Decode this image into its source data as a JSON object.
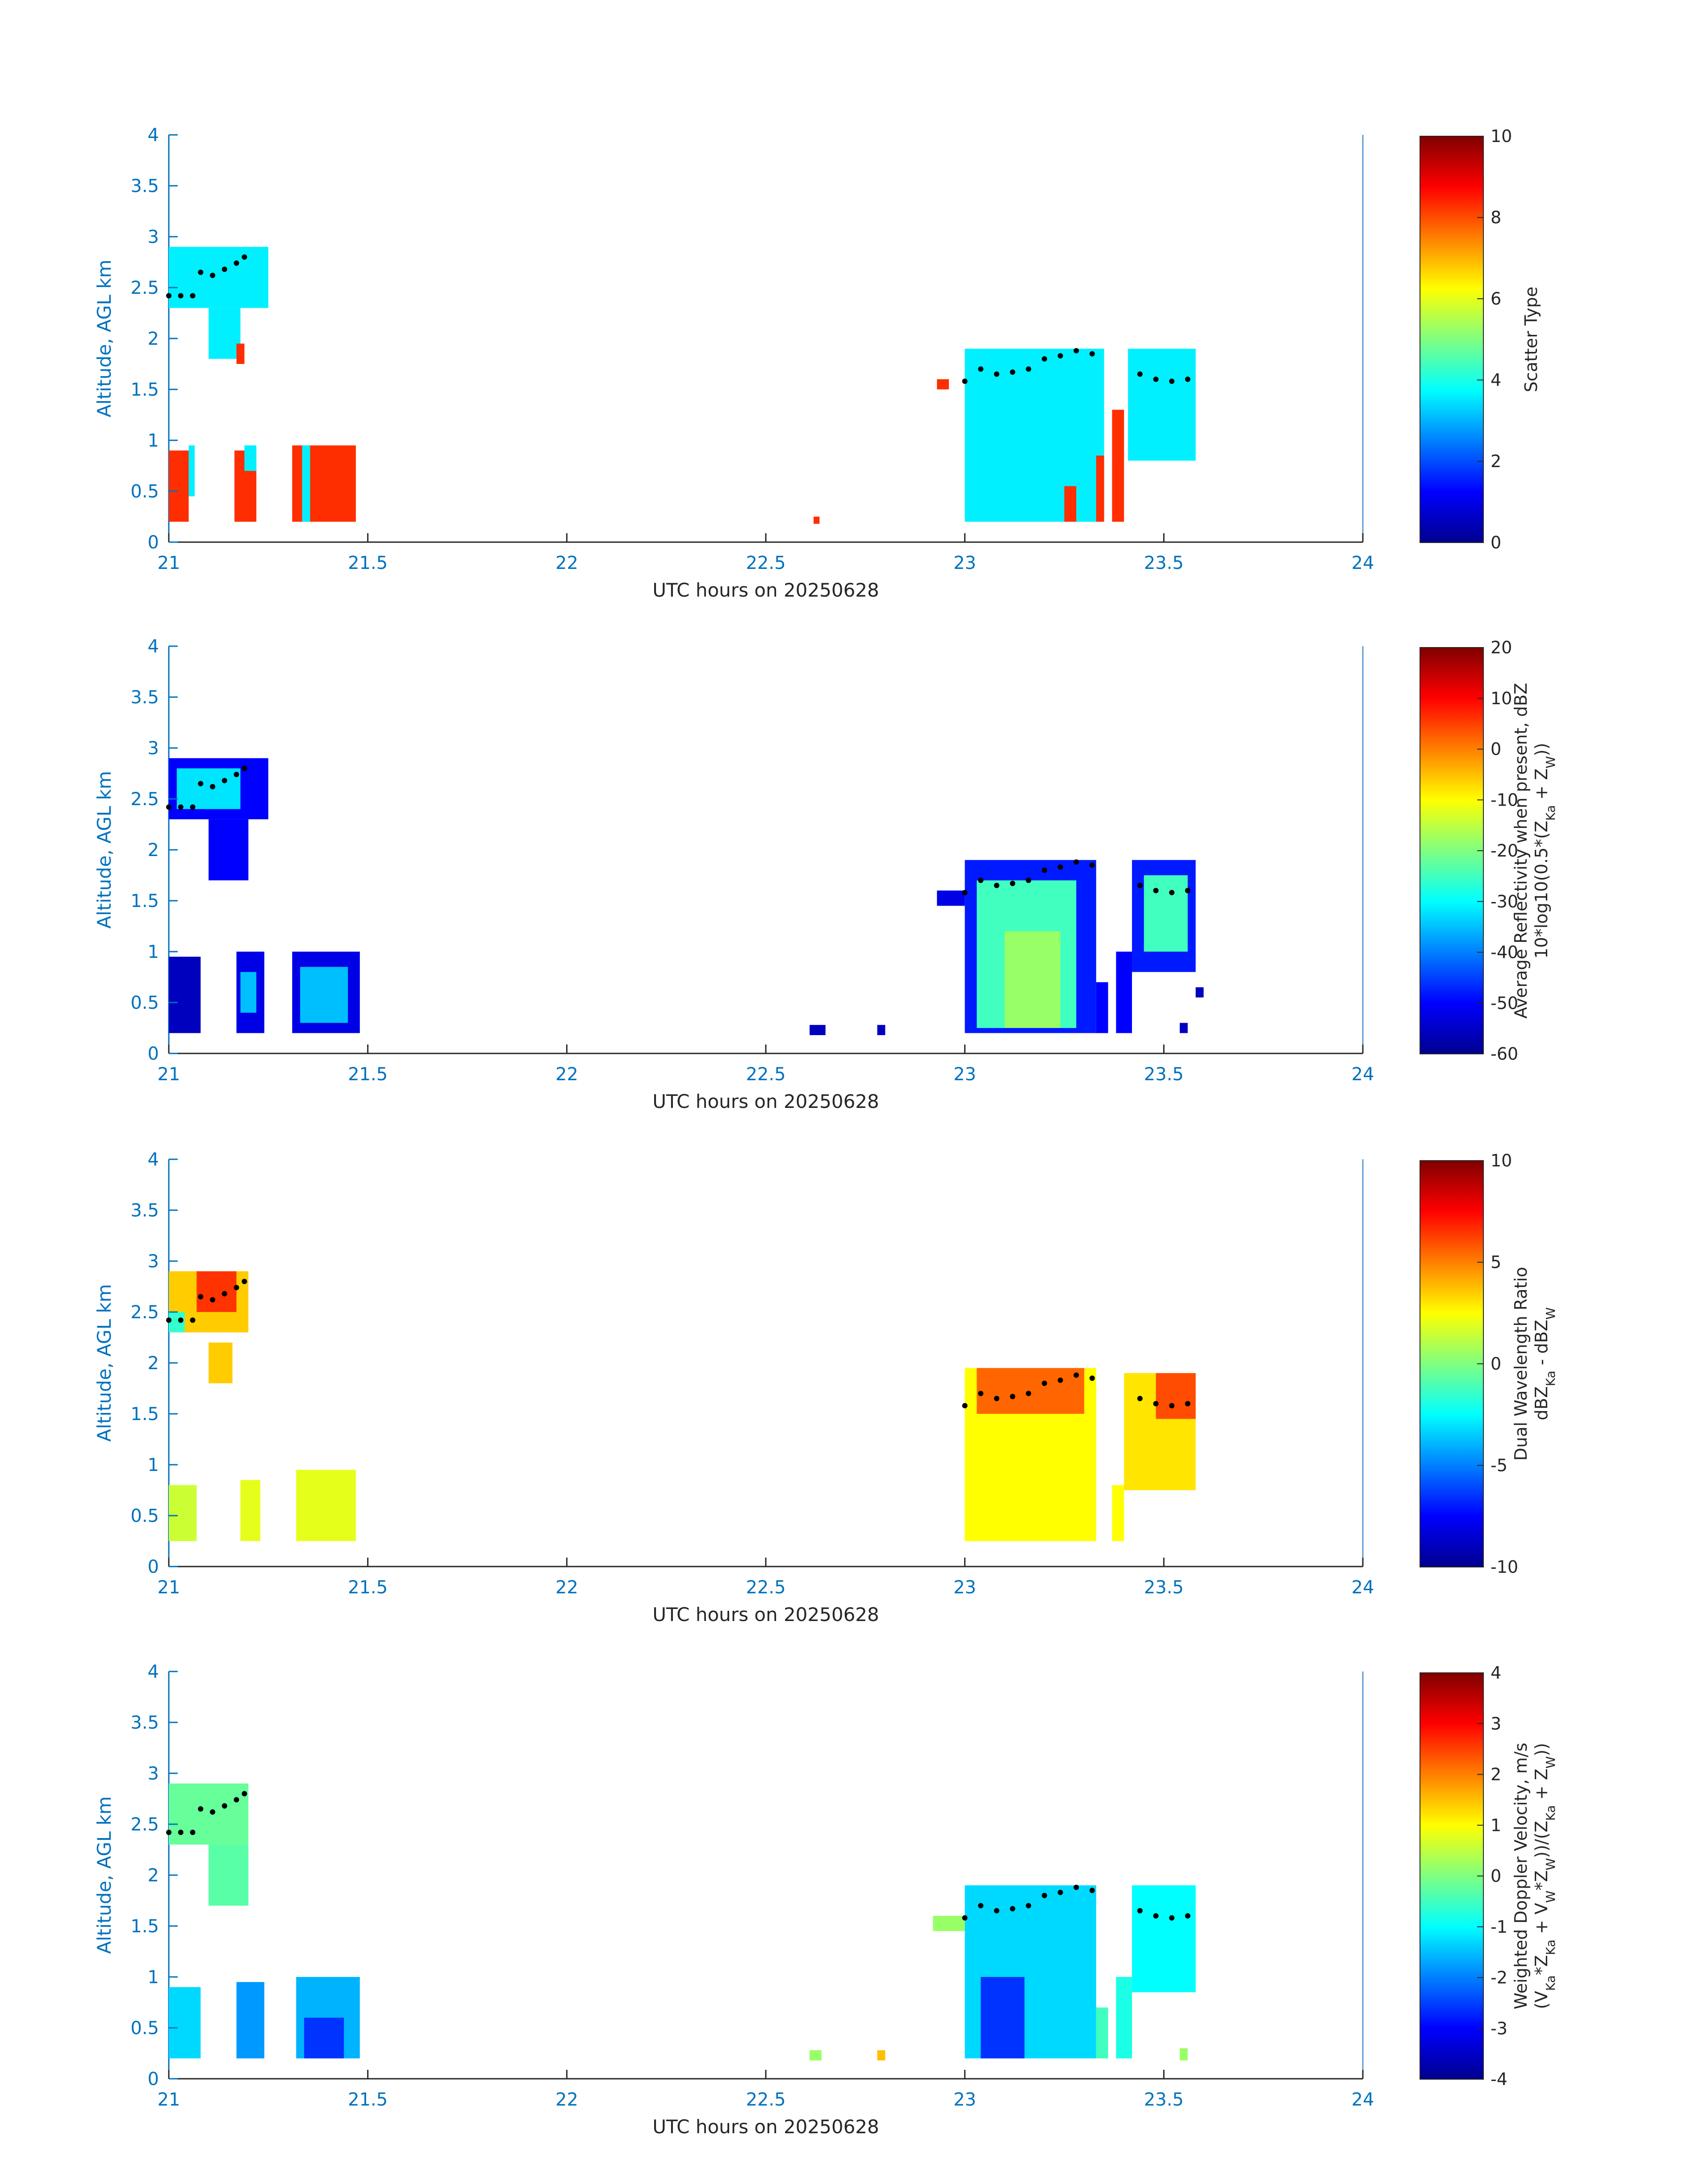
{
  "chart_data": [
    {
      "type": "heatmap",
      "xlabel": "UTC hours on 20250628",
      "ylabel": "Altitude, AGL km",
      "xlim": [
        21,
        24
      ],
      "ylim": [
        0,
        4
      ],
      "x_ticks": [
        "21",
        "21.5",
        "22",
        "22.5",
        "23",
        "23.5",
        "24"
      ],
      "y_ticks": [
        "0",
        "0.5",
        "1",
        "1.5",
        "2",
        "2.5",
        "3",
        "3.5",
        "4"
      ],
      "colorbar": {
        "label_lines": [
          "Scatter Type"
        ],
        "clim": [
          0,
          10
        ],
        "ticks": [
          "0",
          "2",
          "4",
          "6",
          "8",
          "10"
        ]
      },
      "regions": [
        {
          "x": [
            21.0,
            21.25
          ],
          "y": [
            2.3,
            2.9
          ],
          "value": 3.6
        },
        {
          "x": [
            21.1,
            21.18
          ],
          "y": [
            1.8,
            2.3
          ],
          "value": 3.6
        },
        {
          "x": [
            21.17,
            21.19
          ],
          "y": [
            1.75,
            1.95
          ],
          "value": 8.3
        },
        {
          "x": [
            21.0,
            21.05
          ],
          "y": [
            0.2,
            0.9
          ],
          "value": 8.3
        },
        {
          "x": [
            21.05,
            21.065
          ],
          "y": [
            0.45,
            0.95
          ],
          "value": 3.6
        },
        {
          "x": [
            21.165,
            21.22
          ],
          "y": [
            0.2,
            0.9
          ],
          "value": 8.3
        },
        {
          "x": [
            21.19,
            21.22
          ],
          "y": [
            0.7,
            0.95
          ],
          "value": 3.6
        },
        {
          "x": [
            21.31,
            21.47
          ],
          "y": [
            0.2,
            0.95
          ],
          "value": 8.3
        },
        {
          "x": [
            21.335,
            21.355
          ],
          "y": [
            0.2,
            0.95
          ],
          "value": 3.6
        },
        {
          "x": [
            22.62,
            22.635
          ],
          "y": [
            0.18,
            0.25
          ],
          "value": 8.3
        },
        {
          "x": [
            22.93,
            22.96
          ],
          "y": [
            1.5,
            1.6
          ],
          "value": 8.3
        },
        {
          "x": [
            23.0,
            23.35
          ],
          "y": [
            0.2,
            1.9
          ],
          "value": 3.6
        },
        {
          "x": [
            23.25,
            23.28
          ],
          "y": [
            0.2,
            0.55
          ],
          "value": 8.3
        },
        {
          "x": [
            23.33,
            23.35
          ],
          "y": [
            0.2,
            0.85
          ],
          "value": 8.3
        },
        {
          "x": [
            23.37,
            23.4
          ],
          "y": [
            0.2,
            1.3
          ],
          "value": 8.3
        },
        {
          "x": [
            23.41,
            23.58
          ],
          "y": [
            0.8,
            1.9
          ],
          "value": 3.6
        }
      ],
      "melting_layer": [
        {
          "x": 21.0,
          "y": 2.42
        },
        {
          "x": 21.03,
          "y": 2.42
        },
        {
          "x": 21.06,
          "y": 2.42
        },
        {
          "x": 21.08,
          "y": 2.65
        },
        {
          "x": 21.11,
          "y": 2.62
        },
        {
          "x": 21.14,
          "y": 2.68
        },
        {
          "x": 21.17,
          "y": 2.74
        },
        {
          "x": 21.19,
          "y": 2.8
        },
        {
          "x": 23.0,
          "y": 1.58
        },
        {
          "x": 23.04,
          "y": 1.7
        },
        {
          "x": 23.08,
          "y": 1.65
        },
        {
          "x": 23.12,
          "y": 1.67
        },
        {
          "x": 23.16,
          "y": 1.7
        },
        {
          "x": 23.2,
          "y": 1.8
        },
        {
          "x": 23.24,
          "y": 1.83
        },
        {
          "x": 23.28,
          "y": 1.88
        },
        {
          "x": 23.32,
          "y": 1.85
        },
        {
          "x": 23.44,
          "y": 1.65
        },
        {
          "x": 23.48,
          "y": 1.6
        },
        {
          "x": 23.52,
          "y": 1.58
        },
        {
          "x": 23.56,
          "y": 1.6
        }
      ]
    },
    {
      "type": "heatmap",
      "xlabel": "UTC hours on 20250628",
      "ylabel": "Altitude, AGL km",
      "xlim": [
        21,
        24
      ],
      "ylim": [
        0,
        4
      ],
      "x_ticks": [
        "21",
        "21.5",
        "22",
        "22.5",
        "23",
        "23.5",
        "24"
      ],
      "y_ticks": [
        "0",
        "0.5",
        "1",
        "1.5",
        "2",
        "2.5",
        "3",
        "3.5",
        "4"
      ],
      "colorbar": {
        "label_lines": [
          "Average Reflectivity when present, dBZ",
          "10*log10(0.5*(Z_Ka + Z_W))"
        ],
        "clim": [
          -60,
          20
        ],
        "ticks": [
          "-60",
          "-50",
          "-40",
          "-30",
          "-20",
          "-10",
          "0",
          "10",
          "20"
        ]
      },
      "regions": [
        {
          "x": [
            21.0,
            21.25
          ],
          "y": [
            2.3,
            2.9
          ],
          "value": -50
        },
        {
          "x": [
            21.02,
            21.18
          ],
          "y": [
            2.4,
            2.8
          ],
          "value": -32
        },
        {
          "x": [
            21.1,
            21.2
          ],
          "y": [
            1.7,
            2.3
          ],
          "value": -50
        },
        {
          "x": [
            21.0,
            21.08
          ],
          "y": [
            0.2,
            0.95
          ],
          "value": -55
        },
        {
          "x": [
            21.17,
            21.24
          ],
          "y": [
            0.2,
            1.0
          ],
          "value": -52
        },
        {
          "x": [
            21.18,
            21.22
          ],
          "y": [
            0.4,
            0.8
          ],
          "value": -35
        },
        {
          "x": [
            21.31,
            21.48
          ],
          "y": [
            0.2,
            1.0
          ],
          "value": -52
        },
        {
          "x": [
            21.33,
            21.45
          ],
          "y": [
            0.3,
            0.85
          ],
          "value": -35
        },
        {
          "x": [
            22.61,
            22.65
          ],
          "y": [
            0.18,
            0.28
          ],
          "value": -55
        },
        {
          "x": [
            22.78,
            22.8
          ],
          "y": [
            0.18,
            0.28
          ],
          "value": -55
        },
        {
          "x": [
            22.93,
            23.0
          ],
          "y": [
            1.45,
            1.6
          ],
          "value": -52
        },
        {
          "x": [
            23.0,
            23.33
          ],
          "y": [
            0.2,
            1.9
          ],
          "value": -48
        },
        {
          "x": [
            23.03,
            23.28
          ],
          "y": [
            0.25,
            1.7
          ],
          "value": -25
        },
        {
          "x": [
            23.1,
            23.24
          ],
          "y": [
            0.25,
            1.2
          ],
          "value": -18
        },
        {
          "x": [
            23.33,
            23.36
          ],
          "y": [
            0.2,
            0.7
          ],
          "value": -50
        },
        {
          "x": [
            23.38,
            23.42
          ],
          "y": [
            0.2,
            1.0
          ],
          "value": -50
        },
        {
          "x": [
            23.42,
            23.58
          ],
          "y": [
            0.8,
            1.9
          ],
          "value": -48
        },
        {
          "x": [
            23.45,
            23.56
          ],
          "y": [
            1.0,
            1.75
          ],
          "value": -25
        },
        {
          "x": [
            23.54,
            23.56
          ],
          "y": [
            0.2,
            0.3
          ],
          "value": -55
        },
        {
          "x": [
            23.58,
            23.6
          ],
          "y": [
            0.55,
            0.65
          ],
          "value": -55
        }
      ],
      "melting_layer": [
        {
          "x": 21.0,
          "y": 2.42
        },
        {
          "x": 21.03,
          "y": 2.42
        },
        {
          "x": 21.06,
          "y": 2.42
        },
        {
          "x": 21.08,
          "y": 2.65
        },
        {
          "x": 21.11,
          "y": 2.62
        },
        {
          "x": 21.14,
          "y": 2.68
        },
        {
          "x": 21.17,
          "y": 2.74
        },
        {
          "x": 21.19,
          "y": 2.8
        },
        {
          "x": 23.0,
          "y": 1.58
        },
        {
          "x": 23.04,
          "y": 1.7
        },
        {
          "x": 23.08,
          "y": 1.65
        },
        {
          "x": 23.12,
          "y": 1.67
        },
        {
          "x": 23.16,
          "y": 1.7
        },
        {
          "x": 23.2,
          "y": 1.8
        },
        {
          "x": 23.24,
          "y": 1.83
        },
        {
          "x": 23.28,
          "y": 1.88
        },
        {
          "x": 23.32,
          "y": 1.85
        },
        {
          "x": 23.44,
          "y": 1.65
        },
        {
          "x": 23.48,
          "y": 1.6
        },
        {
          "x": 23.52,
          "y": 1.58
        },
        {
          "x": 23.56,
          "y": 1.6
        }
      ]
    },
    {
      "type": "heatmap",
      "xlabel": "UTC hours on 20250628",
      "ylabel": "Altitude, AGL km",
      "xlim": [
        21,
        24
      ],
      "ylim": [
        0,
        4
      ],
      "x_ticks": [
        "21",
        "21.5",
        "22",
        "22.5",
        "23",
        "23.5",
        "24"
      ],
      "y_ticks": [
        "0",
        "0.5",
        "1",
        "1.5",
        "2",
        "2.5",
        "3",
        "3.5",
        "4"
      ],
      "colorbar": {
        "label_lines": [
          "Dual Wavelength Ratio",
          "dBZ_Ka - dBZ_W"
        ],
        "clim": [
          -10,
          10
        ],
        "ticks": [
          "-10",
          "-5",
          "0",
          "5",
          "10"
        ]
      },
      "regions": [
        {
          "x": [
            21.0,
            21.2
          ],
          "y": [
            2.3,
            2.9
          ],
          "value": 3.5
        },
        {
          "x": [
            21.0,
            21.04
          ],
          "y": [
            2.3,
            2.5
          ],
          "value": -1.5
        },
        {
          "x": [
            21.07,
            21.17
          ],
          "y": [
            2.5,
            2.9
          ],
          "value": 6.5
        },
        {
          "x": [
            21.1,
            21.16
          ],
          "y": [
            1.8,
            2.2
          ],
          "value": 3.5
        },
        {
          "x": [
            21.0,
            21.07
          ],
          "y": [
            0.25,
            0.8
          ],
          "value": 1.5
        },
        {
          "x": [
            21.18,
            21.23
          ],
          "y": [
            0.25,
            0.85
          ],
          "value": 2.0
        },
        {
          "x": [
            21.32,
            21.47
          ],
          "y": [
            0.25,
            0.95
          ],
          "value": 2.0
        },
        {
          "x": [
            23.0,
            23.33
          ],
          "y": [
            0.25,
            1.95
          ],
          "value": 2.5
        },
        {
          "x": [
            23.03,
            23.3
          ],
          "y": [
            1.5,
            1.95
          ],
          "value": 5.5
        },
        {
          "x": [
            23.37,
            23.4
          ],
          "y": [
            0.25,
            0.8
          ],
          "value": 2.5
        },
        {
          "x": [
            23.4,
            23.58
          ],
          "y": [
            0.75,
            1.9
          ],
          "value": 3.0
        },
        {
          "x": [
            23.48,
            23.58
          ],
          "y": [
            1.45,
            1.9
          ],
          "value": 6.0
        }
      ],
      "melting_layer": [
        {
          "x": 21.0,
          "y": 2.42
        },
        {
          "x": 21.03,
          "y": 2.42
        },
        {
          "x": 21.06,
          "y": 2.42
        },
        {
          "x": 21.08,
          "y": 2.65
        },
        {
          "x": 21.11,
          "y": 2.62
        },
        {
          "x": 21.14,
          "y": 2.68
        },
        {
          "x": 21.17,
          "y": 2.74
        },
        {
          "x": 21.19,
          "y": 2.8
        },
        {
          "x": 23.0,
          "y": 1.58
        },
        {
          "x": 23.04,
          "y": 1.7
        },
        {
          "x": 23.08,
          "y": 1.65
        },
        {
          "x": 23.12,
          "y": 1.67
        },
        {
          "x": 23.16,
          "y": 1.7
        },
        {
          "x": 23.2,
          "y": 1.8
        },
        {
          "x": 23.24,
          "y": 1.83
        },
        {
          "x": 23.28,
          "y": 1.88
        },
        {
          "x": 23.32,
          "y": 1.85
        },
        {
          "x": 23.44,
          "y": 1.65
        },
        {
          "x": 23.48,
          "y": 1.6
        },
        {
          "x": 23.52,
          "y": 1.58
        },
        {
          "x": 23.56,
          "y": 1.6
        }
      ]
    },
    {
      "type": "heatmap",
      "xlabel": "UTC hours on 20250628",
      "ylabel": "Altitude, AGL km",
      "xlim": [
        21,
        24
      ],
      "ylim": [
        0,
        4
      ],
      "x_ticks": [
        "21",
        "21.5",
        "22",
        "22.5",
        "23",
        "23.5",
        "24"
      ],
      "y_ticks": [
        "0",
        "0.5",
        "1",
        "1.5",
        "2",
        "2.5",
        "3",
        "3.5",
        "4"
      ],
      "colorbar": {
        "label_lines": [
          "Weighted Doppler Velocity, m/s",
          "(V_Ka*Z_Ka + V_W*Z_W))/(Z_Ka + Z_W))"
        ],
        "clim": [
          -4,
          4
        ],
        "ticks": [
          "-4",
          "-3",
          "-2",
          "-1",
          "0",
          "1",
          "2",
          "3",
          "4"
        ]
      },
      "regions": [
        {
          "x": [
            21.0,
            21.2
          ],
          "y": [
            2.3,
            2.9
          ],
          "value": -0.2
        },
        {
          "x": [
            21.1,
            21.2
          ],
          "y": [
            1.7,
            2.3
          ],
          "value": -0.3
        },
        {
          "x": [
            21.0,
            21.08
          ],
          "y": [
            0.2,
            0.9
          ],
          "value": -1.3
        },
        {
          "x": [
            21.17,
            21.24
          ],
          "y": [
            0.2,
            0.95
          ],
          "value": -1.8
        },
        {
          "x": [
            21.32,
            21.48
          ],
          "y": [
            0.2,
            1.0
          ],
          "value": -1.6
        },
        {
          "x": [
            21.34,
            21.44
          ],
          "y": [
            0.2,
            0.6
          ],
          "value": -2.6
        },
        {
          "x": [
            22.61,
            22.64
          ],
          "y": [
            0.18,
            0.28
          ],
          "value": 0.2
        },
        {
          "x": [
            22.78,
            22.8
          ],
          "y": [
            0.18,
            0.28
          ],
          "value": 1.5
        },
        {
          "x": [
            22.92,
            23.0
          ],
          "y": [
            1.45,
            1.6
          ],
          "value": 0.2
        },
        {
          "x": [
            23.0,
            23.33
          ],
          "y": [
            0.2,
            1.9
          ],
          "value": -1.3
        },
        {
          "x": [
            23.04,
            23.15
          ],
          "y": [
            0.2,
            1.0
          ],
          "value": -2.6
        },
        {
          "x": [
            23.33,
            23.36
          ],
          "y": [
            0.2,
            0.7
          ],
          "value": -0.5
        },
        {
          "x": [
            23.38,
            23.42
          ],
          "y": [
            0.2,
            1.0
          ],
          "value": -0.8
        },
        {
          "x": [
            23.42,
            23.58
          ],
          "y": [
            0.85,
            1.9
          ],
          "value": -1.0
        },
        {
          "x": [
            23.54,
            23.56
          ],
          "y": [
            0.18,
            0.3
          ],
          "value": 0.2
        }
      ],
      "melting_layer": [
        {
          "x": 21.0,
          "y": 2.42
        },
        {
          "x": 21.03,
          "y": 2.42
        },
        {
          "x": 21.06,
          "y": 2.42
        },
        {
          "x": 21.08,
          "y": 2.65
        },
        {
          "x": 21.11,
          "y": 2.62
        },
        {
          "x": 21.14,
          "y": 2.68
        },
        {
          "x": 21.17,
          "y": 2.74
        },
        {
          "x": 21.19,
          "y": 2.8
        },
        {
          "x": 23.0,
          "y": 1.58
        },
        {
          "x": 23.04,
          "y": 1.7
        },
        {
          "x": 23.08,
          "y": 1.65
        },
        {
          "x": 23.12,
          "y": 1.67
        },
        {
          "x": 23.16,
          "y": 1.7
        },
        {
          "x": 23.2,
          "y": 1.8
        },
        {
          "x": 23.24,
          "y": 1.83
        },
        {
          "x": 23.28,
          "y": 1.88
        },
        {
          "x": 23.32,
          "y": 1.85
        },
        {
          "x": 23.44,
          "y": 1.65
        },
        {
          "x": 23.48,
          "y": 1.6
        },
        {
          "x": 23.52,
          "y": 1.58
        },
        {
          "x": 23.56,
          "y": 1.6
        }
      ]
    }
  ]
}
